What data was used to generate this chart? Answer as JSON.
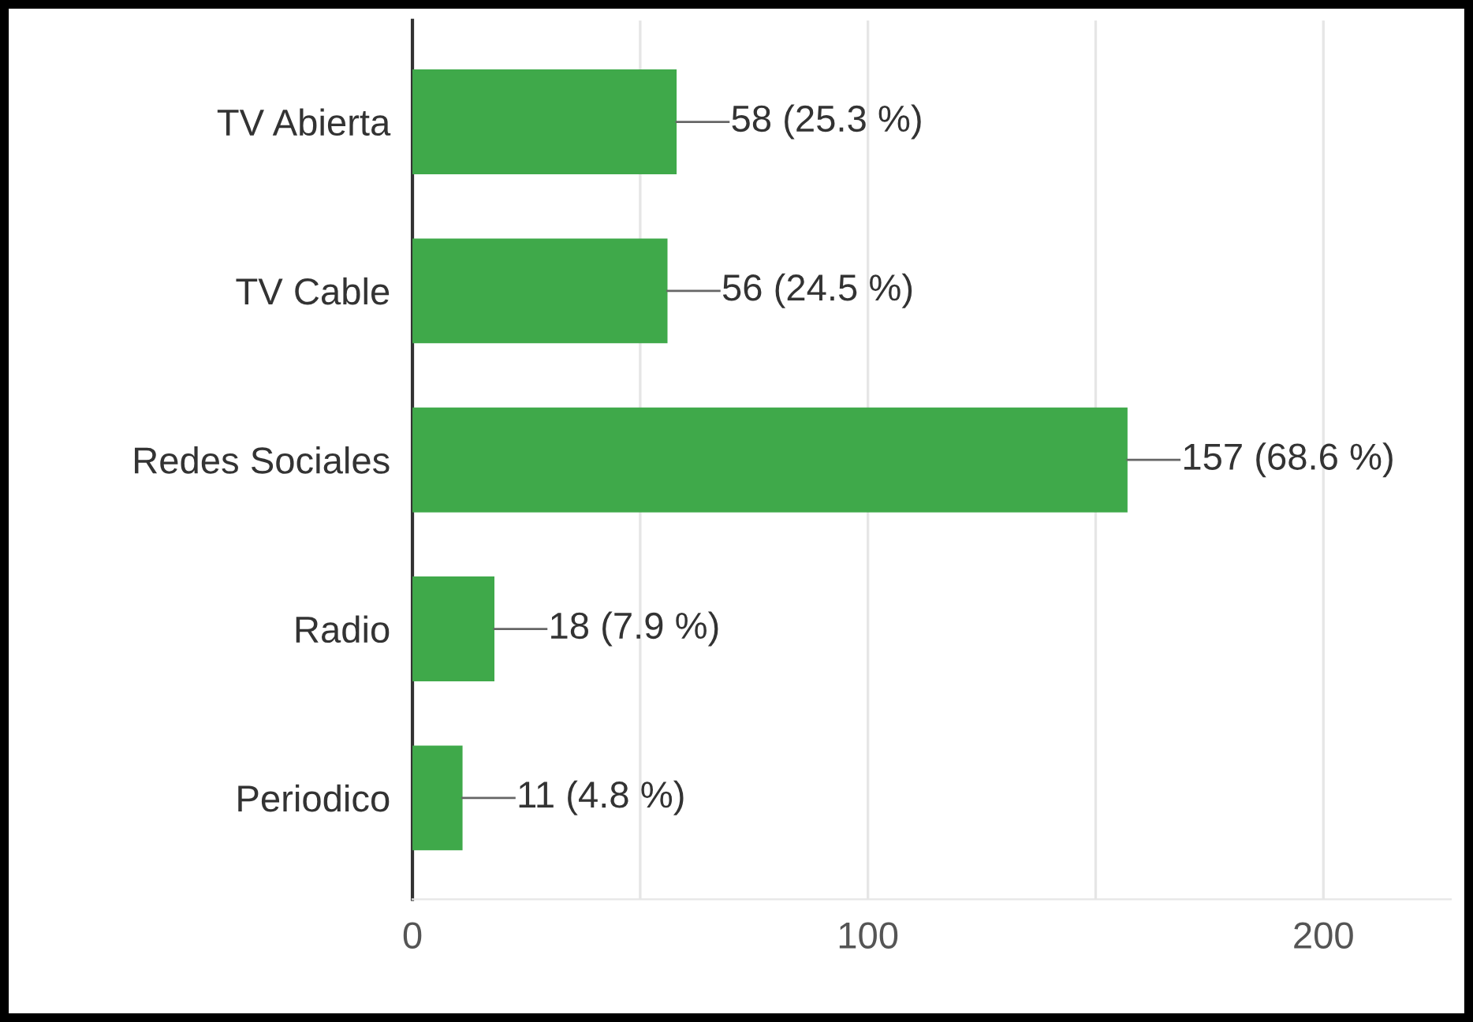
{
  "chart_data": {
    "type": "bar",
    "orientation": "horizontal",
    "categories": [
      "TV Abierta",
      "TV Cable",
      "Redes Sociales",
      "Radio",
      "Periodico"
    ],
    "values": [
      58,
      56,
      157,
      18,
      11
    ],
    "color": "#3fa94a",
    "value_labels": [
      "58 (25.3 %)",
      "56 (24.5 %)",
      "157 (68.6 %)",
      "18 (7.9 %)",
      "11 (4.8 %)"
    ],
    "xlim": [
      0,
      228
    ],
    "xticks": [
      0,
      {
        "value": 50,
        "label": null
      },
      100,
      {
        "value": 150,
        "label": null
      },
      200
    ],
    "grid": "x",
    "legend": false
  }
}
